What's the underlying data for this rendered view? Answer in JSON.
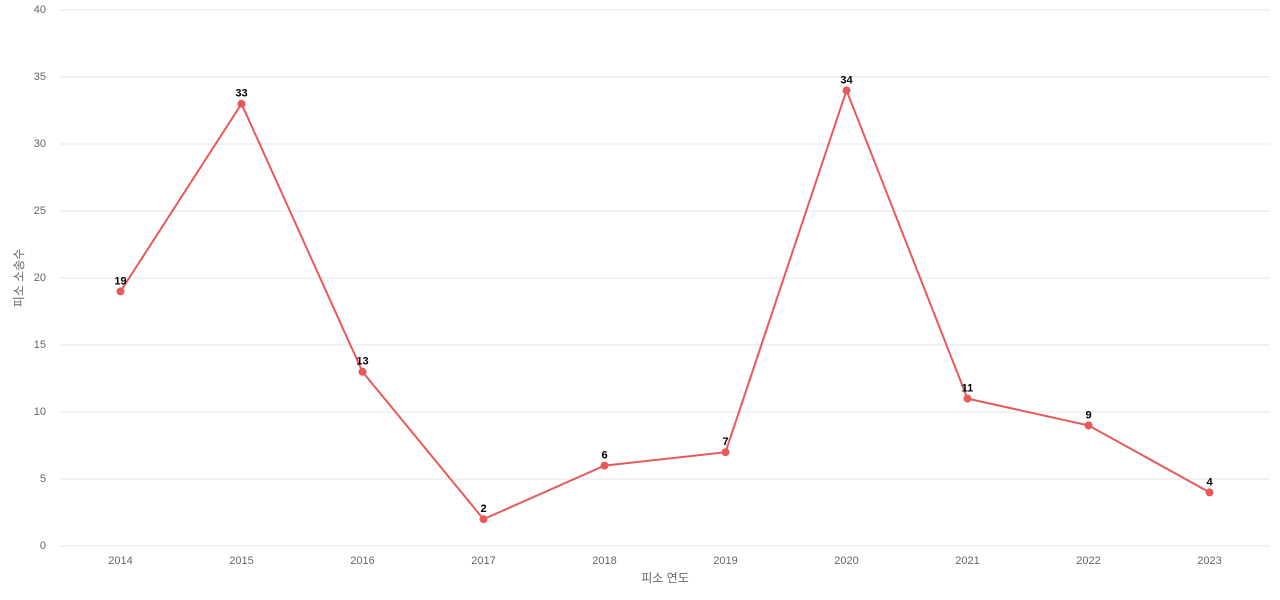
{
  "chart_data": {
    "type": "line",
    "x_label": "피소 연도",
    "y_label": "피소 소송수",
    "categories": [
      "2014",
      "2015",
      "2016",
      "2017",
      "2018",
      "2019",
      "2020",
      "2021",
      "2022",
      "2023"
    ],
    "values": [
      19,
      33,
      13,
      2,
      6,
      7,
      34,
      11,
      9,
      4
    ],
    "color": "#e85a5a",
    "ylim": [
      0,
      40
    ],
    "yticks": [
      0,
      5,
      10,
      15,
      20,
      25,
      30,
      35,
      40
    ],
    "grid": true
  }
}
